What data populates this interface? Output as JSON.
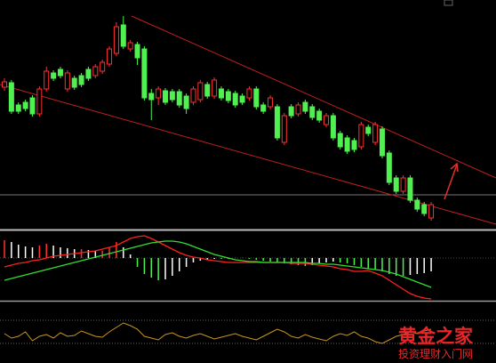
{
  "chart_data": [
    {
      "type": "candlestick",
      "up_color": "#ff3030",
      "down_color": "#50f050",
      "ylim": [
        0,
        258
      ],
      "hline": 39,
      "open": [
        160,
        165,
        140,
        143,
        148,
        130,
        158,
        176,
        180,
        158,
        170,
        173,
        180,
        173,
        178,
        186,
        198,
        230,
        203,
        208,
        203,
        153,
        148,
        156,
        155,
        155,
        150,
        143,
        146,
        163,
        150,
        158,
        155,
        153,
        150,
        148,
        158,
        140,
        138,
        138,
        98,
        138,
        130,
        143,
        138,
        133,
        118,
        128,
        108,
        103,
        100,
        93,
        115,
        98,
        113,
        86,
        58,
        43,
        58,
        33,
        28,
        13
      ],
      "high": [
        170,
        168,
        143,
        146,
        151,
        161,
        183,
        179,
        183,
        179,
        173,
        176,
        183,
        186,
        191,
        206,
        233,
        240,
        213,
        211,
        206,
        158,
        161,
        159,
        158,
        158,
        153,
        161,
        168,
        166,
        171,
        161,
        158,
        156,
        153,
        161,
        161,
        143,
        151,
        141,
        131,
        141,
        143,
        146,
        141,
        136,
        131,
        131,
        111,
        106,
        103,
        121,
        118,
        121,
        116,
        89,
        61,
        61,
        61,
        36,
        31,
        31
      ],
      "low": [
        156,
        130,
        130,
        133,
        127,
        127,
        155,
        167,
        170,
        155,
        157,
        160,
        167,
        170,
        175,
        183,
        195,
        203,
        200,
        185,
        145,
        123,
        140,
        140,
        143,
        137,
        130,
        140,
        143,
        147,
        147,
        145,
        142,
        137,
        140,
        145,
        135,
        130,
        135,
        100,
        95,
        125,
        127,
        130,
        123,
        120,
        115,
        100,
        90,
        85,
        87,
        90,
        105,
        95,
        80,
        50,
        40,
        40,
        30,
        20,
        15,
        10
      ],
      "close": [
        166,
        133,
        133,
        136,
        130,
        158,
        178,
        170,
        173,
        176,
        160,
        163,
        170,
        183,
        188,
        203,
        228,
        206,
        210,
        193,
        148,
        146,
        158,
        143,
        146,
        140,
        136,
        158,
        165,
        150,
        168,
        148,
        145,
        140,
        143,
        158,
        138,
        133,
        148,
        103,
        128,
        128,
        140,
        133,
        126,
        123,
        128,
        103,
        93,
        88,
        90,
        118,
        108,
        118,
        83,
        53,
        43,
        58,
        33,
        23,
        18,
        28
      ]
    },
    {
      "type": "macd",
      "ylim": [
        -48,
        30
      ],
      "up_color": "#ff3030",
      "down_color": "#50f050",
      "fade_color": "#ffffff",
      "zero_color": "#888888",
      "values": [
        20,
        18,
        15,
        13,
        12,
        14,
        16,
        14,
        12,
        11,
        10,
        10,
        9,
        8,
        8,
        12,
        18,
        12,
        4,
        -10,
        -18,
        -22,
        -25,
        -24,
        -20,
        -15,
        -10,
        -5,
        -3,
        -2,
        -1,
        -1,
        -1,
        0.5,
        0.5,
        -1,
        -2,
        -3,
        -4,
        -5,
        -6,
        -7,
        -8,
        -9,
        -8,
        -6,
        -5,
        -4,
        -5,
        -6,
        -8,
        -10,
        -12,
        -13,
        -15,
        -18,
        -20,
        -20,
        -19,
        -18,
        -17,
        -15
      ],
      "series": [
        {
          "color": "#ff2020",
          "values": [
            -10,
            -8,
            -6,
            -5,
            -3,
            -2,
            0,
            2,
            3,
            4,
            5,
            6,
            7,
            8,
            10,
            12,
            14,
            18,
            22,
            24,
            25,
            22,
            18,
            14,
            10,
            6,
            3,
            1,
            0,
            -2,
            -3,
            -4,
            -5,
            -5,
            -5,
            -5,
            -5,
            -5,
            -5,
            -5,
            -5,
            -6,
            -6,
            -6,
            -7,
            -8,
            -9,
            -10,
            -12,
            -13,
            -15,
            -15,
            -14,
            -17,
            -20,
            -25,
            -30,
            -35,
            -40,
            -43,
            -45,
            -46
          ]
        },
        {
          "color": "#30e030",
          "values": [
            -25,
            -23,
            -21,
            -19,
            -17,
            -15,
            -13,
            -11,
            -9,
            -7,
            -5,
            -3,
            -1,
            1,
            3,
            5,
            7,
            9,
            11,
            13,
            15,
            17,
            18,
            19,
            19,
            18,
            16,
            13,
            10,
            7,
            4,
            2,
            0,
            -2,
            -3,
            -4,
            -4,
            -5,
            -5,
            -5,
            -5,
            -5,
            -5,
            -5,
            -6,
            -6,
            -7,
            -7,
            -8,
            -9,
            -10,
            -11,
            -12,
            -13,
            -14,
            -16,
            -18,
            -21,
            -24,
            -27,
            -30,
            -33
          ]
        }
      ]
    },
    {
      "type": "line",
      "ylim": [
        0,
        68
      ],
      "hlines": [
        48,
        22
      ],
      "color": "#c8961e",
      "values": [
        33,
        28,
        30,
        35,
        25,
        30,
        32,
        28,
        34,
        30,
        31,
        36,
        33,
        30,
        29,
        35,
        40,
        45,
        42,
        38,
        30,
        28,
        26,
        32,
        34,
        30,
        28,
        31,
        33,
        30,
        27,
        29,
        31,
        33,
        30,
        28,
        26,
        30,
        34,
        38,
        35,
        30,
        28,
        32,
        29,
        27,
        25,
        30,
        33,
        31,
        35,
        30,
        28,
        24,
        22,
        26,
        30,
        32,
        35,
        33,
        36,
        38
      ]
    }
  ],
  "watermark": {
    "title": "黄金之家",
    "subtitle": "投资理财入门网"
  }
}
